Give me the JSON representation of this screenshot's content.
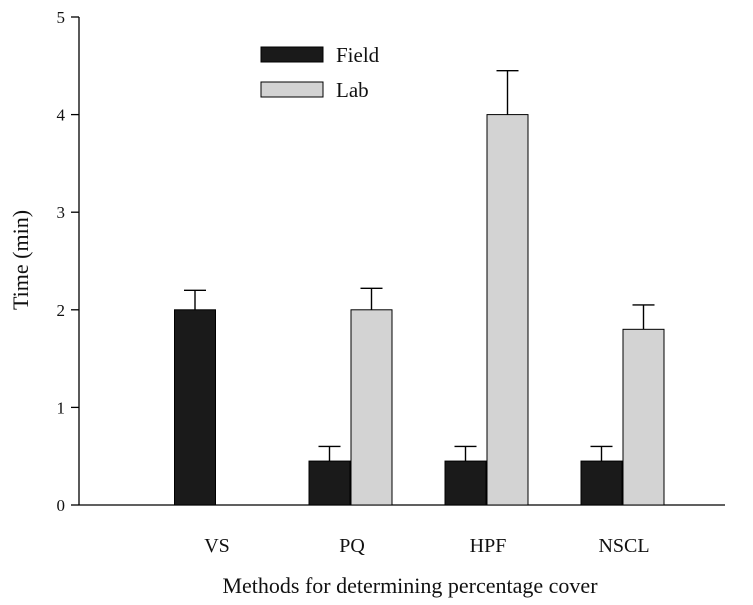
{
  "chart_data": {
    "type": "bar",
    "title": "",
    "xlabel": "Methods for determining percentage cover",
    "ylabel": "Time (min)",
    "ylim": [
      0,
      5
    ],
    "yticks": [
      "0",
      "1",
      "2",
      "3",
      "4",
      "5"
    ],
    "categories": [
      "VS",
      "PQ",
      "HPF",
      "NSCL"
    ],
    "series": [
      {
        "name": "Field",
        "color": "#1a1a1a",
        "values": [
          2.0,
          0.45,
          0.45,
          0.45
        ],
        "errors": [
          0.2,
          0.15,
          0.15,
          0.15
        ]
      },
      {
        "name": "Lab",
        "color": "#d3d3d3",
        "values": [
          null,
          2.0,
          4.0,
          1.8
        ],
        "errors": [
          null,
          0.22,
          0.45,
          0.25
        ]
      }
    ],
    "legend_position": "top-left",
    "grid": false
  }
}
